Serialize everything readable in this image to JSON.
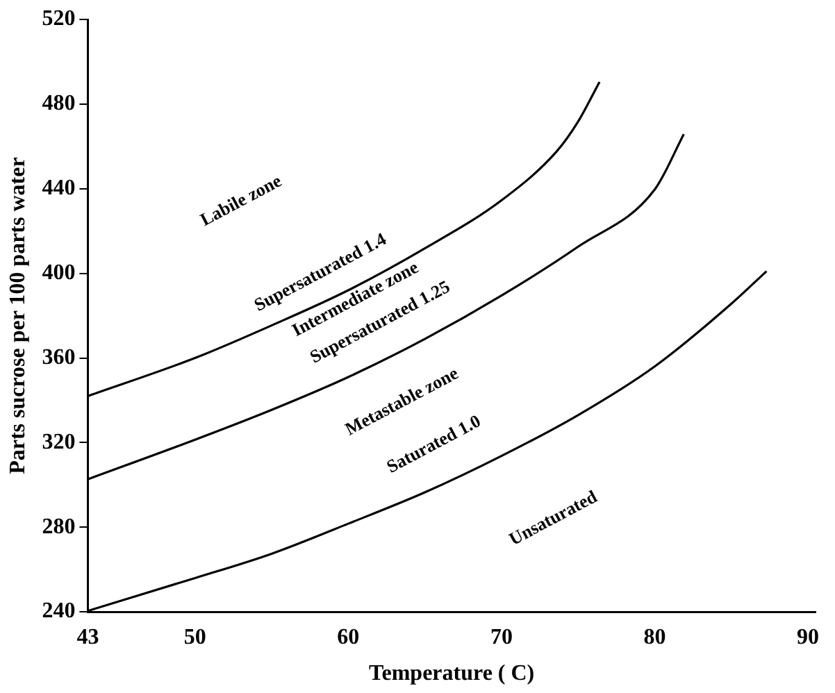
{
  "chart_data": {
    "type": "line",
    "xlabel": "Temperature ( C)",
    "ylabel": "Parts sucrose per 100 parts water",
    "xlim": [
      43,
      90.5
    ],
    "xticks": [
      43,
      50,
      60,
      70,
      80,
      90
    ],
    "ylim": [
      240,
      520
    ],
    "yticks": [
      240,
      280,
      320,
      360,
      400,
      440,
      480,
      520
    ],
    "grid": false,
    "legend": false,
    "marker": "none",
    "line_style": "solid",
    "series": [
      {
        "color": "#000000",
        "x": [
          43,
          50,
          55,
          60,
          65,
          70,
          75,
          80,
          85,
          87.3
        ],
        "values": [
          240.5,
          256,
          267.5,
          281.7,
          296.5,
          313.7,
          333,
          356,
          385.6,
          401
        ]
      },
      {
        "color": "#000000",
        "x": [
          43,
          50,
          55,
          60,
          65,
          70,
          75,
          80,
          81.9
        ],
        "values": [
          302.7,
          321.4,
          335.5,
          351,
          369,
          389.5,
          412.6,
          439.6,
          465.8
        ]
      },
      {
        "color": "#000000",
        "x": [
          43,
          50,
          55,
          60,
          65,
          70,
          73.6,
          75,
          76.4
        ],
        "values": [
          342,
          360,
          375.4,
          392,
          411.8,
          434.5,
          457.6,
          471.7,
          490.5
        ]
      }
    ],
    "annotations": [
      "Labile zone",
      "Supersaturated 1.4",
      "Intermediate zone",
      "Supersaturated 1.25",
      "Metastable zone",
      "Saturated 1.0",
      "Unsaturated"
    ]
  }
}
